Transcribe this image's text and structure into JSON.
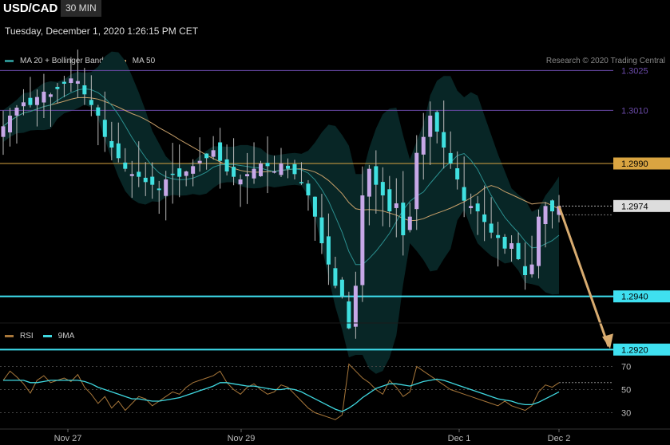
{
  "header": {
    "symbol": "USD/CAD",
    "timeframe": "30 MIN"
  },
  "datetime": "Tuesday, December 1, 2020 1:26:15 PM CET",
  "legend_top": [
    {
      "label": "MA 20 + Bollinger Bands",
      "color": "#2b8f8f"
    },
    {
      "label": "MA 50",
      "color": "#d4a26a"
    }
  ],
  "credit": "Research © 2020 Trading Central",
  "legend_bottom": [
    {
      "label": "RSI",
      "color": "#a8773a"
    },
    {
      "label": "9MA",
      "color": "#3fd8e0"
    }
  ],
  "colors": {
    "candle_up": "#c7a8e8",
    "candle_down": "#40e0e0",
    "resistance": "#6a4aa8",
    "pivot": "#d9a441",
    "support": "#3fe0f0",
    "arrow": "#d9ac70",
    "band_fill": "#082626"
  },
  "chart_data": [
    {
      "type": "candlestick",
      "title": "USD/CAD",
      "ylim": [
        1.2915,
        1.3035
      ],
      "x_ticks": [
        "Nov 27",
        "Nov 29",
        "Dec 1",
        "Dec 2"
      ],
      "levels": [
        {
          "value": 1.3025,
          "label": "1.3025",
          "role": "resistance"
        },
        {
          "value": 1.301,
          "label": "1.3010",
          "role": "resistance"
        },
        {
          "value": 1.299,
          "label": "1.2990",
          "role": "pivot"
        },
        {
          "value": 1.2974,
          "label": "1.2974",
          "role": "last"
        },
        {
          "value": 1.294,
          "label": "1.2940",
          "role": "support"
        },
        {
          "value": 1.292,
          "label": "1.2920",
          "role": "support"
        }
      ],
      "close_path": [
        1.3004,
        1.3008,
        1.3011,
        1.3013,
        1.3012,
        1.3015,
        1.3017,
        1.3016,
        1.3018,
        1.302,
        1.3022,
        1.3021,
        1.3016,
        1.3012,
        1.3008,
        1.3,
        1.2996,
        1.2992,
        1.2988,
        1.2986,
        1.2985,
        1.2983,
        1.2982,
        1.298,
        1.2984,
        1.2986,
        1.2985,
        1.2987,
        1.2989,
        1.2991,
        1.2992,
        1.2995,
        1.2991,
        1.2987,
        1.2985,
        1.2984,
        1.2986,
        1.2988,
        1.299,
        1.2989,
        1.2987,
        1.299,
        1.2988,
        1.2986,
        1.2983,
        1.2978,
        1.297,
        1.296,
        1.2952,
        1.2944,
        1.294,
        1.2928,
        1.2944,
        1.2978,
        1.2988,
        1.2982,
        1.2978,
        1.2972,
        1.2975,
        1.2963,
        1.297,
        1.2994,
        1.3,
        1.3008,
        1.3002,
        1.2996,
        1.299,
        1.2984,
        1.2976,
        1.2974,
        1.2972,
        1.2968,
        1.2964,
        1.2962,
        1.2958,
        1.296,
        1.2954,
        1.2948,
        1.2952,
        1.297,
        1.2974,
        1.2972,
        1.2974
      ],
      "projection": {
        "from": 1.2974,
        "to": 1.292
      }
    },
    {
      "type": "line",
      "legend": [
        "RSI",
        "9MA"
      ],
      "y_ticks": [
        70,
        50,
        30
      ],
      "ylim": [
        20,
        80
      ],
      "series": [
        {
          "name": "RSI",
          "values": [
            58,
            66,
            61,
            55,
            47,
            58,
            62,
            56,
            58,
            60,
            57,
            63,
            52,
            46,
            38,
            44,
            34,
            40,
            32,
            38,
            44,
            42,
            36,
            40,
            44,
            48,
            46,
            52,
            56,
            58,
            60,
            62,
            66,
            56,
            50,
            46,
            52,
            55,
            50,
            46,
            48,
            54,
            52,
            46,
            40,
            34,
            30,
            28,
            26,
            24,
            28,
            72,
            66,
            60,
            56,
            50,
            46,
            58,
            52,
            44,
            48,
            70,
            66,
            62,
            58,
            54,
            50,
            48,
            46,
            44,
            42,
            40,
            38,
            36,
            40,
            36,
            34,
            32,
            36,
            48,
            54,
            52,
            56
          ]
        },
        {
          "name": "9MA",
          "values": [
            58,
            58,
            58,
            58,
            56,
            56,
            57,
            58,
            58,
            58,
            58,
            58,
            57,
            55,
            52,
            50,
            48,
            46,
            44,
            42,
            42,
            41,
            40,
            40,
            41,
            42,
            43,
            45,
            47,
            49,
            51,
            53,
            56,
            56,
            55,
            54,
            53,
            53,
            52,
            51,
            50,
            50,
            51,
            50,
            48,
            45,
            42,
            39,
            36,
            33,
            31,
            34,
            38,
            43,
            47,
            51,
            53,
            55,
            55,
            54,
            53,
            55,
            57,
            58,
            59,
            58,
            56,
            54,
            52,
            50,
            48,
            46,
            44,
            42,
            41,
            40,
            38,
            37,
            37,
            39,
            42,
            45,
            48
          ]
        }
      ]
    }
  ]
}
